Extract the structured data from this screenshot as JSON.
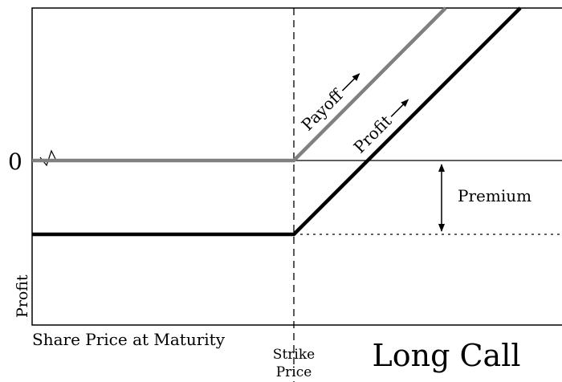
{
  "title": "Long Call",
  "axis": {
    "zero_label": "0",
    "y_label": "Profit",
    "x_label": "Share Price at Maturity"
  },
  "strike_label": [
    "Strike",
    "Price"
  ],
  "lines": {
    "payoff": "Payoff",
    "profit": "Profit"
  },
  "premium": "Premium"
}
